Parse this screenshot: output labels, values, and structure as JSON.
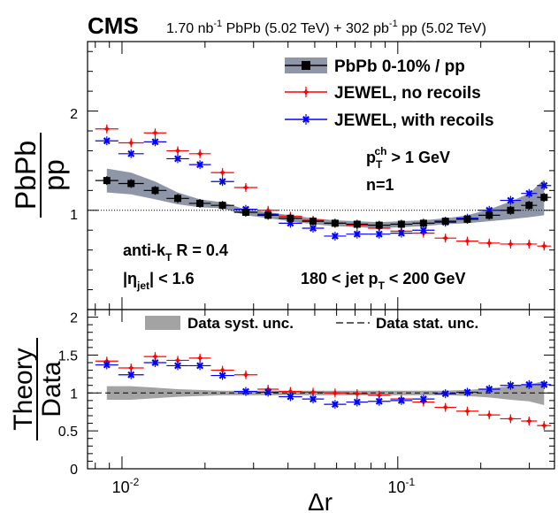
{
  "header": {
    "experiment": "CMS",
    "lumi_pbpb": "1.70 nb",
    "lumi_pbpb_sup": "-1",
    "lumi_pbpb_sys": " PbPb (5.02 TeV) + 302 pb",
    "lumi_pp_sup": "-1",
    "lumi_pp_sys": " pp (5.02 TeV)"
  },
  "colors": {
    "data": "#000000",
    "data_band": "#8f96a8",
    "ratio_band": "#a3a3a3",
    "jewel_no_recoil": "#ff0000",
    "jewel_recoil": "#0000ff",
    "frame": "#000000"
  },
  "chart_data": [
    {
      "type": "scatter",
      "name": "top-panel",
      "ylabel_num": "PbPb",
      "ylabel_den": "pp",
      "xscale": "log",
      "xlim": [
        0.0075,
        0.37
      ],
      "ylim": [
        0.0,
        2.7
      ],
      "y_ticks": [
        "1",
        "2"
      ],
      "reference_line": 1.0,
      "legend": [
        "PbPb 0-10% / pp",
        "JEWEL, no recoils",
        "JEWEL, with recoils"
      ],
      "cut_labels": {
        "pt_ch_prefix": "p",
        "pt_ch_sub": "T",
        "pt_ch_sup": "ch",
        "pt_ch_suffix": " > 1 GeV",
        "n": "n=1",
        "jet_alg_prefix": "anti-k",
        "jet_alg_sub": "T",
        "jet_alg_suffix": " R = 0.4",
        "eta_prefix": "|η",
        "eta_sub": "jet",
        "eta_suffix": "| < 1.6",
        "jet_pt_prefix": "180 < jet p",
        "jet_pt_sub": "T",
        "jet_pt_suffix": " < 200 GeV"
      },
      "bin_edges": [
        0.008,
        0.0097,
        0.012,
        0.0145,
        0.0175,
        0.021,
        0.0255,
        0.031,
        0.037,
        0.045,
        0.054,
        0.065,
        0.078,
        0.094,
        0.113,
        0.136,
        0.163,
        0.196,
        0.235,
        0.28,
        0.32,
        0.36
      ],
      "series": [
        {
          "name": "PbPb 0-10% / pp",
          "marker": "square",
          "values": [
            1.3,
            1.27,
            1.2,
            1.12,
            1.07,
            1.05,
            0.98,
            0.95,
            0.92,
            0.89,
            0.87,
            0.86,
            0.85,
            0.86,
            0.87,
            0.89,
            0.91,
            0.95,
            1.0,
            1.05,
            1.13
          ],
          "syst_band": [
            0.12,
            0.11,
            0.09,
            0.06,
            0.04,
            0.03,
            0.03,
            0.03,
            0.03,
            0.03,
            0.03,
            0.03,
            0.03,
            0.03,
            0.03,
            0.03,
            0.04,
            0.06,
            0.09,
            0.12,
            0.18
          ]
        },
        {
          "name": "JEWEL, no recoils",
          "marker": "star",
          "values": [
            1.82,
            1.68,
            1.78,
            1.6,
            1.57,
            1.38,
            1.23,
            1.0,
            0.94,
            0.9,
            0.87,
            0.85,
            0.82,
            0.79,
            0.77,
            0.72,
            0.69,
            0.67,
            0.66,
            0.66,
            0.64
          ]
        },
        {
          "name": "JEWEL, with recoils",
          "marker": "cross",
          "values": [
            1.7,
            1.57,
            1.69,
            1.52,
            1.46,
            1.29,
            1.01,
            0.96,
            0.87,
            0.82,
            0.74,
            0.76,
            0.76,
            0.77,
            0.8,
            0.88,
            0.92,
            1.0,
            1.1,
            1.17,
            1.25
          ]
        }
      ]
    },
    {
      "type": "scatter",
      "name": "ratio-panel",
      "xlabel": "Δr",
      "ylabel_num": "Theory",
      "ylabel_den": "Data",
      "xscale": "log",
      "xlim": [
        0.0075,
        0.37
      ],
      "ylim": [
        0.0,
        2.1
      ],
      "y_ticks": [
        "0",
        "0.5",
        "1",
        "1.5",
        "2"
      ],
      "x_ticks": [
        {
          "value": 0.01,
          "base": "10",
          "exp": "-2"
        },
        {
          "value": 0.1,
          "base": "10",
          "exp": "-1"
        }
      ],
      "legend": [
        "Data syst. unc.",
        "Data stat. unc."
      ],
      "series": [
        {
          "name": "JEWEL, no recoils",
          "marker": "star",
          "values": [
            1.42,
            1.33,
            1.48,
            1.43,
            1.46,
            1.3,
            1.24,
            1.05,
            1.02,
            1.01,
            1.0,
            0.99,
            0.97,
            0.92,
            0.88,
            0.81,
            0.76,
            0.71,
            0.66,
            0.63,
            0.57
          ]
        },
        {
          "name": "JEWEL, with recoils",
          "marker": "cross",
          "values": [
            1.37,
            1.24,
            1.4,
            1.36,
            1.36,
            1.23,
            1.02,
            1.01,
            0.95,
            0.92,
            0.85,
            0.88,
            0.89,
            0.9,
            0.92,
            0.99,
            1.01,
            1.05,
            1.1,
            1.11,
            1.11
          ]
        }
      ],
      "syst_band": [
        0.09,
        0.09,
        0.07,
        0.05,
        0.04,
        0.03,
        0.03,
        0.03,
        0.03,
        0.03,
        0.03,
        0.03,
        0.03,
        0.03,
        0.03,
        0.03,
        0.04,
        0.06,
        0.09,
        0.11,
        0.16
      ]
    }
  ]
}
